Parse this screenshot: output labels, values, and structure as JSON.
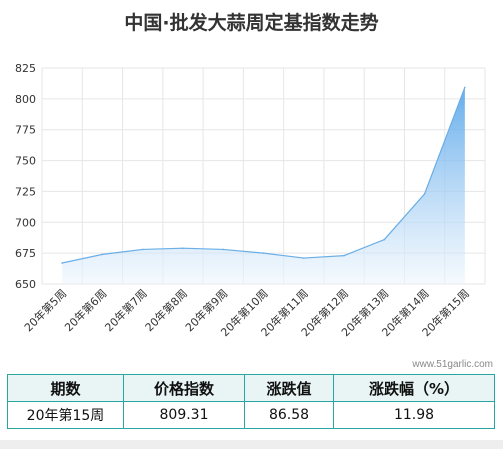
{
  "title": "中国·批发大蒜周定基指数走势",
  "watermark": "www.51garlic.com",
  "colors": {
    "line": "#6aaee6",
    "fill_top": "#4a9ee8",
    "fill_bottom": "#eef6fd",
    "grid": "#e6e6e6",
    "table_border": "#2aa6a0"
  },
  "chart_data": {
    "type": "area",
    "title": "中国·批发大蒜周定基指数走势",
    "xlabel": "",
    "ylabel": "",
    "categories": [
      "20年第5周",
      "20年第6周",
      "20年第7周",
      "20年第8周",
      "20年第9周",
      "20年第10周",
      "20年第11周",
      "20年第12周",
      "20年第13周",
      "20年第14周",
      "20年第15周"
    ],
    "values": [
      667,
      674,
      678,
      679,
      678,
      675,
      671,
      673,
      686,
      723,
      809.31
    ],
    "ylim": [
      650,
      825
    ],
    "yticks": [
      650,
      675,
      700,
      725,
      750,
      775,
      800,
      825
    ],
    "grid": true,
    "legend": "none"
  },
  "table": {
    "headers": [
      "期数",
      "价格指数",
      "涨跌值",
      "涨跌幅（%）"
    ],
    "row": [
      "20年第15周",
      "809.31",
      "86.58",
      "11.98"
    ]
  }
}
